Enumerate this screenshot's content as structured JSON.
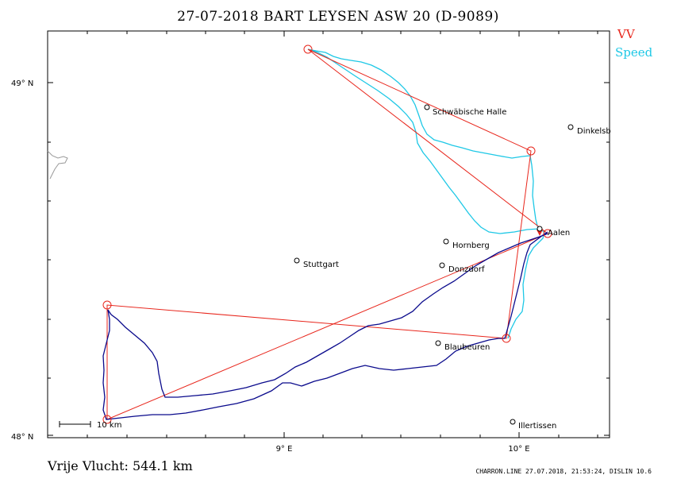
{
  "title": "27-07-2018   BART LEYSEN   ASW 20 (D-9089)",
  "legend": {
    "vv": {
      "label": "VV",
      "color": "#e8261c"
    },
    "speed": {
      "label": "Speed",
      "color": "#1ec8e6"
    }
  },
  "axes": {
    "lat_labels": [
      "49° N",
      "48° N"
    ],
    "lon_labels": [
      "9° E",
      "10° E"
    ]
  },
  "cities": [
    {
      "name": "Schwäbische Halle"
    },
    {
      "name": "Dinkelsb"
    },
    {
      "name": "Aalen"
    },
    {
      "name": "Hornberg"
    },
    {
      "name": "Stuttgart"
    },
    {
      "name": "Donzdorf"
    },
    {
      "name": "Blaubeuren"
    },
    {
      "name": "Illertissen"
    }
  ],
  "scale_bar": {
    "label": "10  km"
  },
  "footer": {
    "distance": "Vrije Vlucht:  544.1 km",
    "credit": "CHARRON.LINE 27.07.2018, 21:53:24, DISLIN 10.6"
  },
  "colors": {
    "track": "#0a0a8c",
    "task": "#e8261c",
    "speed": "#1ec8e6",
    "frame": "#000000"
  }
}
